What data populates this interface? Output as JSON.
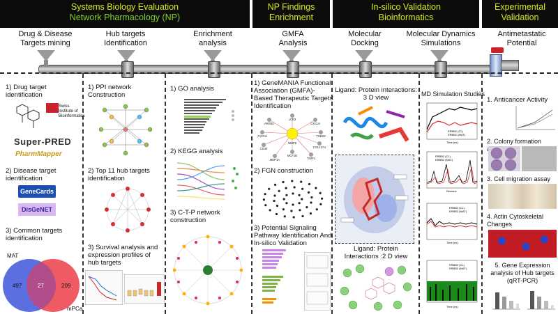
{
  "header": {
    "systems_line1": "Systems Biology Evaluation",
    "systems_line2": "Network Pharmacology (NP)",
    "np_line1": "NP Findings",
    "np_line2": "Enrichment",
    "insilico_line1": "In-silico Validation",
    "insilico_line2": "Bioinformatics",
    "exp_line1": "Experimental",
    "exp_line2": "Validation"
  },
  "stages": {
    "drug_disease": "Drug & Disease\nTargets mining",
    "hub": "Hub targets\nIdentification",
    "enrichment": "Enrichment\nanalysis",
    "gmfa": "GMFA\nAnalysis",
    "docking": "Molecular\nDocking",
    "md": "Molecular Dynamics\nSimulations",
    "antimetastatic": "Antimetastatic\nPotential"
  },
  "col1": {
    "item1": "1)    Drug target\n       identification",
    "sib_text": "Swiss Institute of\nBioinformatics",
    "superpred": "Super-PRED",
    "pharmmapper": "PharmMapper",
    "item2": "2)    Disease target\n       identification",
    "genecards": "GeneCards",
    "disgenet": "DisGeNET",
    "item3": "3)   Common targets\n      identification",
    "venn_left_label": "MAT",
    "venn_right_label": "mPCa",
    "venn_left": "497",
    "venn_mid": "27",
    "venn_right": "209"
  },
  "col2": {
    "item1": "1)     PPI network\n        Construction",
    "item2": "2)   Top 11 hub targets\n       identification",
    "item3": "3)   Survival analysis and\n       expression profiles of\n       hub targets"
  },
  "col3": {
    "item1": "1)       GO analysis",
    "item2": "2)       KEGG analysis",
    "item3": "3)       C-T-P network\n           construction"
  },
  "col4": {
    "item1": "1)  GeneMANIA  Functional\n     Association (GMFA)-\n     Based Therapeutic Targets\n     Identification",
    "item2": "2)    FGN construction",
    "item3": "3)    Potential Signaling\n     Pathway Identification And\n     In-silico Validation",
    "genes": [
      "LCN2",
      "ARRB1",
      "CXCL8",
      "THBS2",
      "CXCL5",
      "COL12A1",
      "CD44",
      "MMP9",
      "MEP1A",
      "TIMP1",
      "MCF1B"
    ]
  },
  "col5": {
    "ligand3d": "Ligand: Protein interactions:\n3 D view",
    "ligand2d": "Ligand: Protein\nInteractions :2 D view"
  },
  "col6": {
    "title": "MD Simulation Studies",
    "legend_a": "ERBB2 (CL)",
    "legend_b": "ERBB2 (MAT)",
    "xlabel_time": "Time (ns)",
    "xlabel_residue": "Residue"
  },
  "col7": {
    "item1": "1.  Anticancer Activity",
    "item2": "2.  Colony formation assay",
    "item3": "3.  Cell migration assay",
    "item4": "4.  Actin Cytoskeletal\n     Changes",
    "item5": "5.  Gene Expression\nanalysis of Hub targets\n(qRT-PCR)"
  },
  "colors": {
    "band_bg": "#0c0c0c",
    "band_text": "#d8e81b",
    "band_sub": "#7fd32e",
    "venn_left": "#5b6fe0",
    "venn_right": "#ef5a63",
    "venn_mid": "#b14d8a"
  }
}
